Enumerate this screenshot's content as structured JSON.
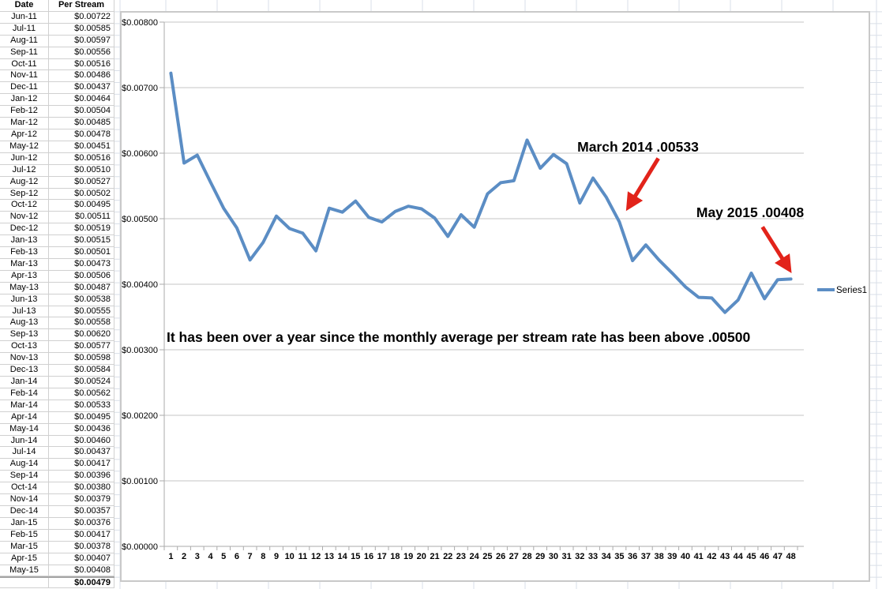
{
  "table": {
    "headers": [
      "Date",
      "Per Stream"
    ],
    "rows": [
      [
        "Jun-11",
        "$0.00722"
      ],
      [
        "Jul-11",
        "$0.00585"
      ],
      [
        "Aug-11",
        "$0.00597"
      ],
      [
        "Sep-11",
        "$0.00556"
      ],
      [
        "Oct-11",
        "$0.00516"
      ],
      [
        "Nov-11",
        "$0.00486"
      ],
      [
        "Dec-11",
        "$0.00437"
      ],
      [
        "Jan-12",
        "$0.00464"
      ],
      [
        "Feb-12",
        "$0.00504"
      ],
      [
        "Mar-12",
        "$0.00485"
      ],
      [
        "Apr-12",
        "$0.00478"
      ],
      [
        "May-12",
        "$0.00451"
      ],
      [
        "Jun-12",
        "$0.00516"
      ],
      [
        "Jul-12",
        "$0.00510"
      ],
      [
        "Aug-12",
        "$0.00527"
      ],
      [
        "Sep-12",
        "$0.00502"
      ],
      [
        "Oct-12",
        "$0.00495"
      ],
      [
        "Nov-12",
        "$0.00511"
      ],
      [
        "Dec-12",
        "$0.00519"
      ],
      [
        "Jan-13",
        "$0.00515"
      ],
      [
        "Feb-13",
        "$0.00501"
      ],
      [
        "Mar-13",
        "$0.00473"
      ],
      [
        "Apr-13",
        "$0.00506"
      ],
      [
        "May-13",
        "$0.00487"
      ],
      [
        "Jun-13",
        "$0.00538"
      ],
      [
        "Jul-13",
        "$0.00555"
      ],
      [
        "Aug-13",
        "$0.00558"
      ],
      [
        "Sep-13",
        "$0.00620"
      ],
      [
        "Oct-13",
        "$0.00577"
      ],
      [
        "Nov-13",
        "$0.00598"
      ],
      [
        "Dec-13",
        "$0.00584"
      ],
      [
        "Jan-14",
        "$0.00524"
      ],
      [
        "Feb-14",
        "$0.00562"
      ],
      [
        "Mar-14",
        "$0.00533"
      ],
      [
        "Apr-14",
        "$0.00495"
      ],
      [
        "May-14",
        "$0.00436"
      ],
      [
        "Jun-14",
        "$0.00460"
      ],
      [
        "Jul-14",
        "$0.00437"
      ],
      [
        "Aug-14",
        "$0.00417"
      ],
      [
        "Sep-14",
        "$0.00396"
      ],
      [
        "Oct-14",
        "$0.00380"
      ],
      [
        "Nov-14",
        "$0.00379"
      ],
      [
        "Dec-14",
        "$0.00357"
      ],
      [
        "Jan-15",
        "$0.00376"
      ],
      [
        "Feb-15",
        "$0.00417"
      ],
      [
        "Mar-15",
        "$0.00378"
      ],
      [
        "Apr-15",
        "$0.00407"
      ],
      [
        "May-15",
        "$0.00408"
      ]
    ],
    "total": "$0.00479"
  },
  "chart_data": {
    "type": "line",
    "series": [
      {
        "name": "Series1",
        "values": [
          0.00722,
          0.00585,
          0.00597,
          0.00556,
          0.00516,
          0.00486,
          0.00437,
          0.00464,
          0.00504,
          0.00485,
          0.00478,
          0.00451,
          0.00516,
          0.0051,
          0.00527,
          0.00502,
          0.00495,
          0.00511,
          0.00519,
          0.00515,
          0.00501,
          0.00473,
          0.00506,
          0.00487,
          0.00538,
          0.00555,
          0.00558,
          0.0062,
          0.00577,
          0.00598,
          0.00584,
          0.00524,
          0.00562,
          0.00533,
          0.00495,
          0.00436,
          0.0046,
          0.00437,
          0.00417,
          0.00396,
          0.0038,
          0.00379,
          0.00357,
          0.00376,
          0.00417,
          0.00378,
          0.00407,
          0.00408
        ]
      }
    ],
    "x_labels": [
      "1",
      "2",
      "3",
      "4",
      "5",
      "6",
      "7",
      "8",
      "9",
      "10",
      "11",
      "12",
      "13",
      "14",
      "15",
      "16",
      "17",
      "18",
      "19",
      "20",
      "21",
      "22",
      "23",
      "24",
      "25",
      "26",
      "27",
      "28",
      "29",
      "30",
      "31",
      "32",
      "33",
      "34",
      "35",
      "36",
      "37",
      "38",
      "39",
      "40",
      "41",
      "42",
      "43",
      "44",
      "45",
      "46",
      "47",
      "48"
    ],
    "y_tick_labels": [
      "$0.00800",
      "$0.00700",
      "$0.00600",
      "$0.00500",
      "$0.00400",
      "$0.00300",
      "$0.00200",
      "$0.00100",
      "$0.00000"
    ],
    "ylim": [
      0,
      0.008
    ],
    "grid": true,
    "legend_position": "right",
    "line_color": "#5b8dc4",
    "annotation_color": "#e2231a",
    "annotations": [
      {
        "text": "March 2014 .00533",
        "point": 34
      },
      {
        "text": "May 2015 .00408",
        "point": 48
      },
      {
        "text": "It has been over a year since the monthly average per stream rate has been above .00500"
      }
    ]
  }
}
